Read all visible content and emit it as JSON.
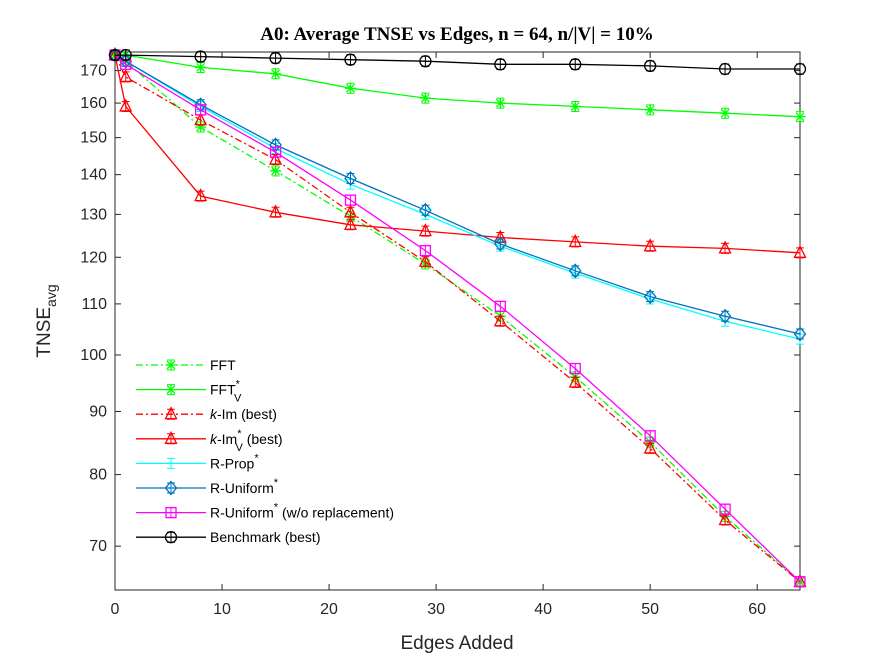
{
  "chart_data": {
    "type": "line",
    "title": "A0: Average TNSE vs Edges, n = 64, n/|V| = 10%",
    "xlabel": "Edges Added",
    "ylabel": {
      "main": "TNSE",
      "sub": "avg"
    },
    "xlim": [
      0,
      64
    ],
    "ylim": [
      64.5,
      176
    ],
    "yscale": "log",
    "grid": false,
    "legend_position": "bottom-left",
    "xticks": [
      0,
      10,
      20,
      30,
      40,
      50,
      60
    ],
    "yticks": [
      70,
      80,
      90,
      100,
      110,
      120,
      130,
      140,
      150,
      160,
      170
    ],
    "series": [
      {
        "name": "FFT",
        "name_parts": {
          "pre": "",
          "main": "FFT",
          "sup": "",
          "sub": "",
          "post": ""
        },
        "color": "#00ff00",
        "dash": "dashdot",
        "marker": "asterisk",
        "x": [
          0,
          1,
          8,
          15,
          22,
          29,
          36,
          43,
          50,
          57,
          64
        ],
        "y": [
          175,
          173,
          153,
          141,
          129.5,
          118.5,
          107.5,
          96,
          85,
          74,
          65.5
        ]
      },
      {
        "name": "FFT*V",
        "name_parts": {
          "pre": "",
          "main": "FFT",
          "sup": "*",
          "sub": "V",
          "post": ""
        },
        "color": "#00ff00",
        "dash": "solid",
        "marker": "asterisk",
        "x": [
          0,
          1,
          8,
          15,
          22,
          29,
          36,
          43,
          50,
          57,
          64
        ],
        "y": [
          175,
          175,
          171,
          169,
          164.5,
          161.5,
          160,
          159,
          158,
          157,
          156
        ]
      },
      {
        "name": "k-Im (best)",
        "name_parts": {
          "pre": "k",
          "main": "-Im",
          "sup": "",
          "sub": "",
          "post": " (best)"
        },
        "color": "#ff0000",
        "dash": "dashdot",
        "marker": "triangle",
        "x": [
          0,
          1,
          8,
          15,
          22,
          29,
          36,
          43,
          50,
          57,
          64
        ],
        "y": [
          175,
          168,
          155,
          144,
          130.5,
          119,
          106.5,
          95,
          84,
          73.5,
          65.5
        ]
      },
      {
        "name": "k-Im*V (best)",
        "name_parts": {
          "pre": "k",
          "main": "-Im",
          "sup": "*",
          "sub": "V",
          "post": " (best)"
        },
        "color": "#ff0000",
        "dash": "solid",
        "marker": "triangle",
        "x": [
          0,
          1,
          8,
          15,
          22,
          29,
          36,
          43,
          50,
          57,
          64
        ],
        "y": [
          175,
          159,
          134.5,
          130.5,
          127.5,
          126,
          124.5,
          123.5,
          122.5,
          122,
          121
        ]
      },
      {
        "name": "R-Prop*",
        "name_parts": {
          "pre": "",
          "main": "R-Prop",
          "sup": "*",
          "sub": "",
          "post": ""
        },
        "color": "#00ffff",
        "dash": "solid",
        "marker": "none",
        "x": [
          0,
          1,
          8,
          15,
          22,
          29,
          36,
          43,
          50,
          57,
          64
        ],
        "y": [
          175,
          173,
          159,
          147,
          137.5,
          130,
          122.5,
          116.5,
          111,
          106.5,
          103
        ]
      },
      {
        "name": "R-Uniform*",
        "name_parts": {
          "pre": "",
          "main": "R-Uniform",
          "sup": "*",
          "sub": "",
          "post": ""
        },
        "color": "#0072bd",
        "dash": "solid",
        "marker": "diamond",
        "x": [
          0,
          1,
          8,
          15,
          22,
          29,
          36,
          43,
          50,
          57,
          64
        ],
        "y": [
          175,
          173,
          159.5,
          148,
          139,
          131,
          123,
          117,
          111.5,
          107.5,
          104
        ]
      },
      {
        "name": "R-Uniform* (w/o replacement)",
        "name_parts": {
          "pre": "",
          "main": "R-Uniform",
          "sup": "*",
          "sub": "",
          "post": " (w/o replacement)"
        },
        "color": "#ff00ff",
        "dash": "solid",
        "marker": "square",
        "x": [
          0,
          1,
          8,
          15,
          22,
          29,
          36,
          43,
          50,
          57,
          64
        ],
        "y": [
          175,
          172,
          158,
          146,
          133.5,
          121.5,
          109.5,
          97.5,
          86,
          75,
          65.5
        ]
      },
      {
        "name": "Benchmark (best)",
        "name_parts": {
          "pre": "",
          "main": "Benchmark",
          "sup": "",
          "sub": "",
          "post": " (best)"
        },
        "color": "#000000",
        "dash": "solid",
        "marker": "circle",
        "x": [
          0,
          1,
          8,
          15,
          22,
          29,
          36,
          43,
          50,
          57,
          64
        ],
        "y": [
          175,
          175,
          174.5,
          174,
          173.5,
          173,
          172,
          172,
          171.5,
          170.5,
          170.5
        ]
      }
    ]
  }
}
